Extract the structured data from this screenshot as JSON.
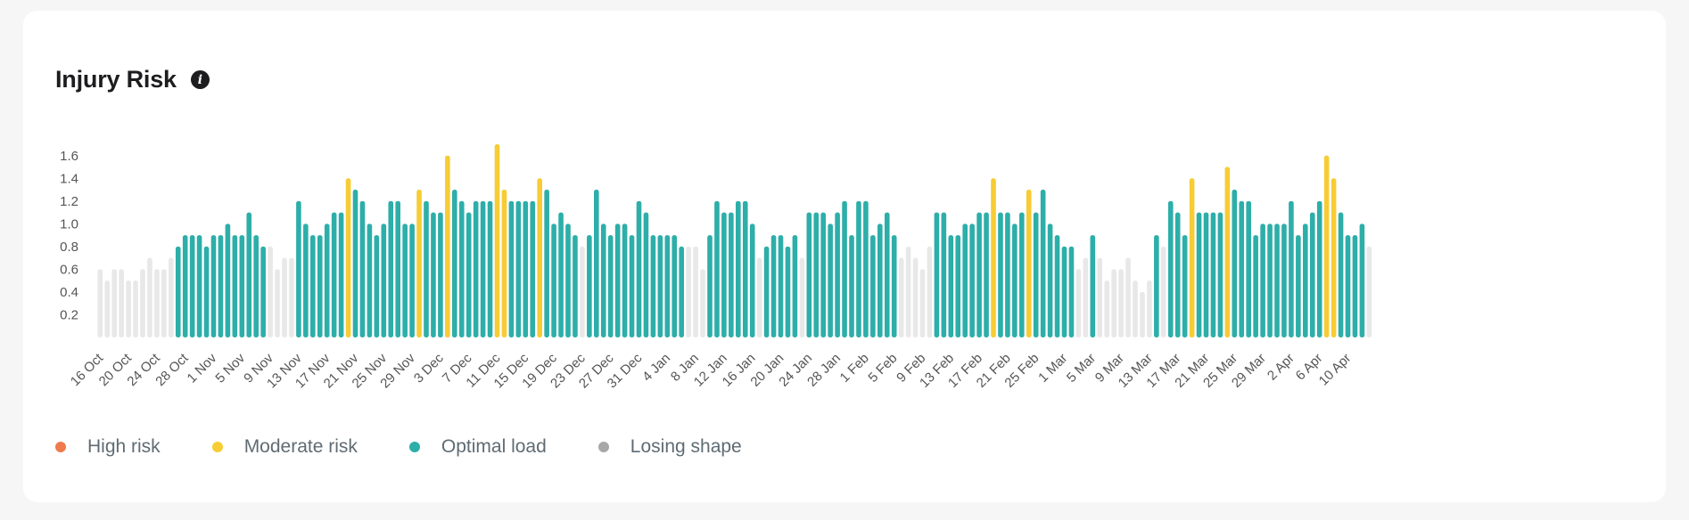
{
  "header": {
    "title": "Injury Risk",
    "info_icon": "info-icon"
  },
  "colors": {
    "high": "#ee7b4c",
    "moderate": "#f7cc34",
    "optimal": "#2daea9",
    "losing": "#e8e8e8",
    "legend_losing_dot": "#a8a8a8"
  },
  "legend": [
    {
      "key": "high",
      "label": "High risk"
    },
    {
      "key": "moderate",
      "label": "Moderate risk"
    },
    {
      "key": "optimal",
      "label": "Optimal load"
    },
    {
      "key": "losing",
      "label": "Losing shape"
    }
  ],
  "chart_data": {
    "type": "bar",
    "ylim": [
      0,
      1.7
    ],
    "yticks": [
      0.2,
      0.4,
      0.6,
      0.8,
      1.0,
      1.2,
      1.4,
      1.6
    ],
    "x_tick_labels": [
      "16 Oct",
      "20 Oct",
      "24 Oct",
      "28 Oct",
      "1 Nov",
      "5 Nov",
      "9 Nov",
      "13 Nov",
      "17 Nov",
      "21 Nov",
      "25 Nov",
      "29 Nov",
      "3 Dec",
      "7 Dec",
      "11 Dec",
      "15 Dec",
      "19 Dec",
      "23 Dec",
      "27 Dec",
      "31 Dec",
      "4 Jan",
      "8 Jan",
      "12 Jan",
      "16 Jan",
      "20 Jan",
      "24 Jan",
      "28 Jan",
      "1 Feb",
      "5 Feb",
      "9 Feb",
      "13 Feb",
      "17 Feb",
      "21 Feb",
      "25 Feb",
      "1 Mar",
      "5 Mar",
      "9 Mar",
      "13 Mar",
      "17 Mar",
      "21 Mar",
      "25 Mar",
      "29 Mar",
      "2 Apr",
      "6 Apr",
      "10 Apr"
    ],
    "bars": [
      {
        "v": 0.6,
        "s": "L"
      },
      {
        "v": 0.5,
        "s": "L"
      },
      {
        "v": 0.6,
        "s": "L"
      },
      {
        "v": 0.6,
        "s": "L"
      },
      {
        "v": 0.5,
        "s": "L"
      },
      {
        "v": 0.5,
        "s": "L"
      },
      {
        "v": 0.6,
        "s": "L"
      },
      {
        "v": 0.7,
        "s": "L"
      },
      {
        "v": 0.6,
        "s": "L"
      },
      {
        "v": 0.6,
        "s": "L"
      },
      {
        "v": 0.7,
        "s": "L"
      },
      {
        "v": 0.8,
        "s": "O"
      },
      {
        "v": 0.9,
        "s": "O"
      },
      {
        "v": 0.9,
        "s": "O"
      },
      {
        "v": 0.9,
        "s": "O"
      },
      {
        "v": 0.8,
        "s": "O"
      },
      {
        "v": 0.9,
        "s": "O"
      },
      {
        "v": 0.9,
        "s": "O"
      },
      {
        "v": 1.0,
        "s": "O"
      },
      {
        "v": 0.9,
        "s": "O"
      },
      {
        "v": 0.9,
        "s": "O"
      },
      {
        "v": 1.1,
        "s": "O"
      },
      {
        "v": 0.9,
        "s": "O"
      },
      {
        "v": 0.8,
        "s": "O"
      },
      {
        "v": 0.8,
        "s": "L"
      },
      {
        "v": 0.6,
        "s": "L"
      },
      {
        "v": 0.7,
        "s": "L"
      },
      {
        "v": 0.7,
        "s": "L"
      },
      {
        "v": 1.2,
        "s": "O"
      },
      {
        "v": 1.0,
        "s": "O"
      },
      {
        "v": 0.9,
        "s": "O"
      },
      {
        "v": 0.9,
        "s": "O"
      },
      {
        "v": 1.0,
        "s": "O"
      },
      {
        "v": 1.1,
        "s": "O"
      },
      {
        "v": 1.1,
        "s": "O"
      },
      {
        "v": 1.4,
        "s": "M"
      },
      {
        "v": 1.3,
        "s": "O"
      },
      {
        "v": 1.2,
        "s": "O"
      },
      {
        "v": 1.0,
        "s": "O"
      },
      {
        "v": 0.9,
        "s": "O"
      },
      {
        "v": 1.0,
        "s": "O"
      },
      {
        "v": 1.2,
        "s": "O"
      },
      {
        "v": 1.2,
        "s": "O"
      },
      {
        "v": 1.0,
        "s": "O"
      },
      {
        "v": 1.0,
        "s": "O"
      },
      {
        "v": 1.3,
        "s": "M"
      },
      {
        "v": 1.2,
        "s": "O"
      },
      {
        "v": 1.1,
        "s": "O"
      },
      {
        "v": 1.1,
        "s": "O"
      },
      {
        "v": 1.6,
        "s": "M"
      },
      {
        "v": 1.3,
        "s": "O"
      },
      {
        "v": 1.2,
        "s": "O"
      },
      {
        "v": 1.1,
        "s": "O"
      },
      {
        "v": 1.2,
        "s": "O"
      },
      {
        "v": 1.2,
        "s": "O"
      },
      {
        "v": 1.2,
        "s": "O"
      },
      {
        "v": 1.7,
        "s": "M"
      },
      {
        "v": 1.3,
        "s": "M"
      },
      {
        "v": 1.2,
        "s": "O"
      },
      {
        "v": 1.2,
        "s": "O"
      },
      {
        "v": 1.2,
        "s": "O"
      },
      {
        "v": 1.2,
        "s": "O"
      },
      {
        "v": 1.4,
        "s": "M"
      },
      {
        "v": 1.3,
        "s": "O"
      },
      {
        "v": 1.0,
        "s": "O"
      },
      {
        "v": 1.1,
        "s": "O"
      },
      {
        "v": 1.0,
        "s": "O"
      },
      {
        "v": 0.9,
        "s": "O"
      },
      {
        "v": 0.8,
        "s": "L"
      },
      {
        "v": 0.9,
        "s": "O"
      },
      {
        "v": 1.3,
        "s": "O"
      },
      {
        "v": 1.0,
        "s": "O"
      },
      {
        "v": 0.9,
        "s": "O"
      },
      {
        "v": 1.0,
        "s": "O"
      },
      {
        "v": 1.0,
        "s": "O"
      },
      {
        "v": 0.9,
        "s": "O"
      },
      {
        "v": 1.2,
        "s": "O"
      },
      {
        "v": 1.1,
        "s": "O"
      },
      {
        "v": 0.9,
        "s": "O"
      },
      {
        "v": 0.9,
        "s": "O"
      },
      {
        "v": 0.9,
        "s": "O"
      },
      {
        "v": 0.9,
        "s": "O"
      },
      {
        "v": 0.8,
        "s": "O"
      },
      {
        "v": 0.8,
        "s": "L"
      },
      {
        "v": 0.8,
        "s": "L"
      },
      {
        "v": 0.6,
        "s": "L"
      },
      {
        "v": 0.9,
        "s": "O"
      },
      {
        "v": 1.2,
        "s": "O"
      },
      {
        "v": 1.1,
        "s": "O"
      },
      {
        "v": 1.1,
        "s": "O"
      },
      {
        "v": 1.2,
        "s": "O"
      },
      {
        "v": 1.2,
        "s": "O"
      },
      {
        "v": 1.0,
        "s": "O"
      },
      {
        "v": 0.7,
        "s": "L"
      },
      {
        "v": 0.8,
        "s": "O"
      },
      {
        "v": 0.9,
        "s": "O"
      },
      {
        "v": 0.9,
        "s": "O"
      },
      {
        "v": 0.8,
        "s": "O"
      },
      {
        "v": 0.9,
        "s": "O"
      },
      {
        "v": 0.7,
        "s": "L"
      },
      {
        "v": 1.1,
        "s": "O"
      },
      {
        "v": 1.1,
        "s": "O"
      },
      {
        "v": 1.1,
        "s": "O"
      },
      {
        "v": 1.0,
        "s": "O"
      },
      {
        "v": 1.1,
        "s": "O"
      },
      {
        "v": 1.2,
        "s": "O"
      },
      {
        "v": 0.9,
        "s": "O"
      },
      {
        "v": 1.2,
        "s": "O"
      },
      {
        "v": 1.2,
        "s": "O"
      },
      {
        "v": 0.9,
        "s": "O"
      },
      {
        "v": 1.0,
        "s": "O"
      },
      {
        "v": 1.1,
        "s": "O"
      },
      {
        "v": 0.9,
        "s": "O"
      },
      {
        "v": 0.7,
        "s": "L"
      },
      {
        "v": 0.8,
        "s": "L"
      },
      {
        "v": 0.7,
        "s": "L"
      },
      {
        "v": 0.6,
        "s": "L"
      },
      {
        "v": 0.8,
        "s": "L"
      },
      {
        "v": 1.1,
        "s": "O"
      },
      {
        "v": 1.1,
        "s": "O"
      },
      {
        "v": 0.9,
        "s": "O"
      },
      {
        "v": 0.9,
        "s": "O"
      },
      {
        "v": 1.0,
        "s": "O"
      },
      {
        "v": 1.0,
        "s": "O"
      },
      {
        "v": 1.1,
        "s": "O"
      },
      {
        "v": 1.1,
        "s": "O"
      },
      {
        "v": 1.4,
        "s": "M"
      },
      {
        "v": 1.1,
        "s": "O"
      },
      {
        "v": 1.1,
        "s": "O"
      },
      {
        "v": 1.0,
        "s": "O"
      },
      {
        "v": 1.1,
        "s": "O"
      },
      {
        "v": 1.3,
        "s": "M"
      },
      {
        "v": 1.1,
        "s": "O"
      },
      {
        "v": 1.3,
        "s": "O"
      },
      {
        "v": 1.0,
        "s": "O"
      },
      {
        "v": 0.9,
        "s": "O"
      },
      {
        "v": 0.8,
        "s": "O"
      },
      {
        "v": 0.8,
        "s": "O"
      },
      {
        "v": 0.6,
        "s": "L"
      },
      {
        "v": 0.7,
        "s": "L"
      },
      {
        "v": 0.9,
        "s": "O"
      },
      {
        "v": 0.7,
        "s": "L"
      },
      {
        "v": 0.5,
        "s": "L"
      },
      {
        "v": 0.6,
        "s": "L"
      },
      {
        "v": 0.6,
        "s": "L"
      },
      {
        "v": 0.7,
        "s": "L"
      },
      {
        "v": 0.5,
        "s": "L"
      },
      {
        "v": 0.4,
        "s": "L"
      },
      {
        "v": 0.5,
        "s": "L"
      },
      {
        "v": 0.9,
        "s": "O"
      },
      {
        "v": 0.8,
        "s": "L"
      },
      {
        "v": 1.2,
        "s": "O"
      },
      {
        "v": 1.1,
        "s": "O"
      },
      {
        "v": 0.9,
        "s": "O"
      },
      {
        "v": 1.4,
        "s": "M"
      },
      {
        "v": 1.1,
        "s": "O"
      },
      {
        "v": 1.1,
        "s": "O"
      },
      {
        "v": 1.1,
        "s": "O"
      },
      {
        "v": 1.1,
        "s": "O"
      },
      {
        "v": 1.5,
        "s": "M"
      },
      {
        "v": 1.3,
        "s": "O"
      },
      {
        "v": 1.2,
        "s": "O"
      },
      {
        "v": 1.2,
        "s": "O"
      },
      {
        "v": 0.9,
        "s": "O"
      },
      {
        "v": 1.0,
        "s": "O"
      },
      {
        "v": 1.0,
        "s": "O"
      },
      {
        "v": 1.0,
        "s": "O"
      },
      {
        "v": 1.0,
        "s": "O"
      },
      {
        "v": 1.2,
        "s": "O"
      },
      {
        "v": 0.9,
        "s": "O"
      },
      {
        "v": 1.0,
        "s": "O"
      },
      {
        "v": 1.1,
        "s": "O"
      },
      {
        "v": 1.2,
        "s": "O"
      },
      {
        "v": 1.6,
        "s": "M"
      },
      {
        "v": 1.4,
        "s": "M"
      },
      {
        "v": 1.1,
        "s": "O"
      },
      {
        "v": 0.9,
        "s": "O"
      },
      {
        "v": 0.9,
        "s": "O"
      },
      {
        "v": 1.0,
        "s": "O"
      },
      {
        "v": 0.8,
        "s": "L"
      }
    ],
    "legend_placement": "bottom-left",
    "grid": false
  }
}
